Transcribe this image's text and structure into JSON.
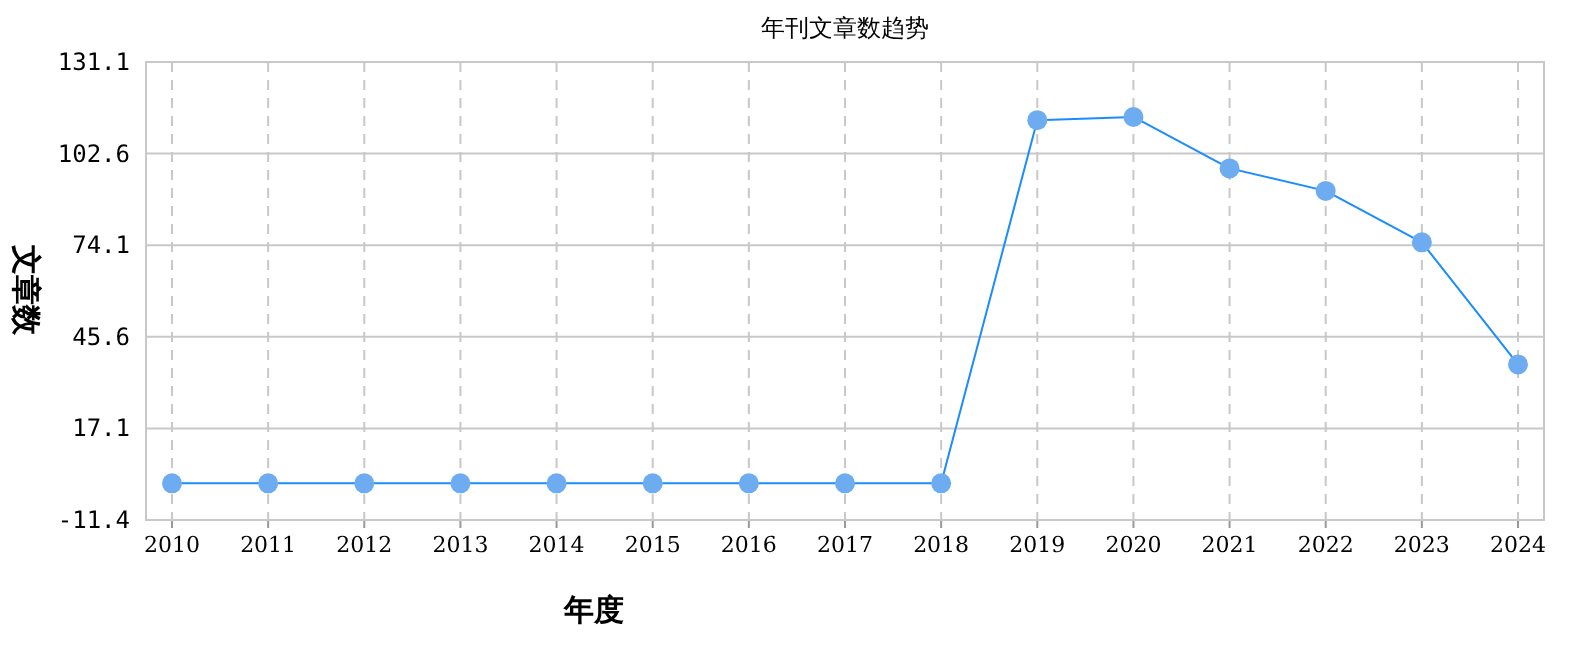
{
  "chart_data": {
    "type": "line",
    "title": "年刊文章数趋势",
    "xlabel": "年度",
    "ylabel": "文章数",
    "categories": [
      "2010",
      "2011",
      "2012",
      "2013",
      "2014",
      "2015",
      "2016",
      "2017",
      "2018",
      "2019",
      "2020",
      "2021",
      "2022",
      "2023",
      "2024"
    ],
    "series": [
      {
        "color": "#1a8cff",
        "values": [
          0,
          0,
          0,
          0,
          0,
          0,
          0,
          0,
          0,
          113,
          114,
          98,
          91,
          75,
          37
        ]
      }
    ],
    "ylim": [
      -11.4,
      131.1
    ],
    "yticks": [
      -11.4,
      17.1,
      45.6,
      74.1,
      102.6,
      131.1
    ],
    "grid": true,
    "marker": "circle",
    "line_style": "solid"
  }
}
